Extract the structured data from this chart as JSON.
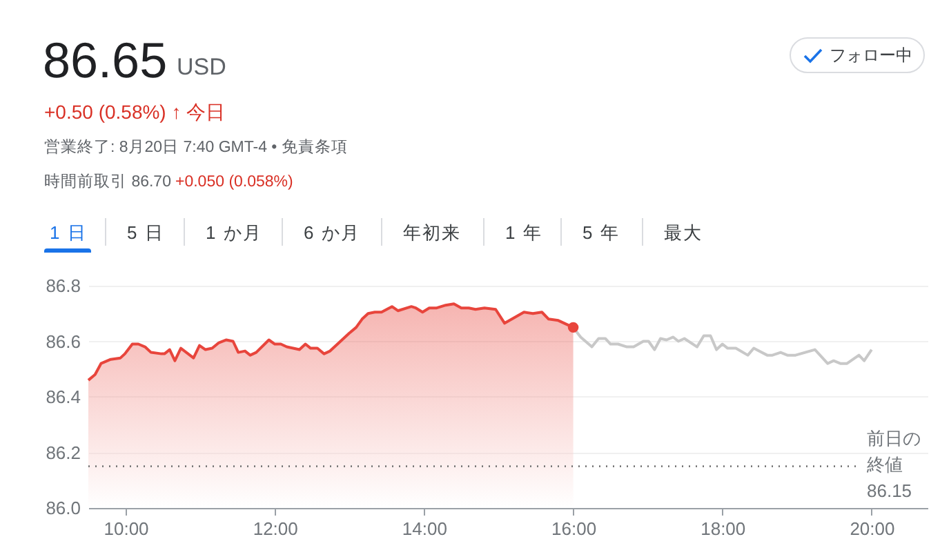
{
  "chart_data": {
    "type": "area",
    "title": "86.65",
    "annotations": [
      "USD",
      "+0.50 (0.58%) ↑ 今日",
      "営業終了: 8月20日 7:40 GMT-4 • 免責条項",
      "時間前取引 86.70",
      "+0.050 (0.058%)",
      "1 日",
      "5 日",
      "1 か月",
      "6 か月",
      "年初来",
      "1 年",
      "5 年",
      "最大",
      "フォロー中"
    ],
    "series": [
      {
        "color": "#e8453c",
        "x": [
          9.5,
          9.59,
          9.67,
          9.8,
          9.93,
          9.99,
          10.09,
          10.17,
          10.26,
          10.34,
          10.48,
          10.52,
          10.59,
          10.66,
          10.74,
          10.91,
          10.99,
          11.07,
          11.16,
          11.25,
          11.35,
          11.44,
          11.51,
          11.6,
          11.67,
          11.75,
          11.92,
          12.0,
          12.08,
          12.16,
          12.33,
          12.41,
          12.48,
          12.57,
          12.66,
          12.74,
          12.88,
          13.0,
          13.09,
          13.17,
          13.25,
          13.34,
          13.43,
          13.57,
          13.65,
          13.83,
          13.89,
          13.98,
          14.07,
          14.17,
          14.29,
          14.4,
          14.5,
          14.6,
          14.69,
          14.81,
          14.96,
          15.08,
          15.21,
          15.34,
          15.46,
          15.58,
          15.67,
          15.8,
          16.0
        ],
        "values": [
          86.46,
          86.48,
          86.52,
          86.535,
          86.54,
          86.555,
          86.59,
          86.59,
          86.58,
          86.56,
          86.555,
          86.555,
          86.57,
          86.53,
          86.575,
          86.54,
          86.585,
          86.57,
          86.575,
          86.595,
          86.605,
          86.6,
          86.56,
          86.565,
          86.55,
          86.56,
          86.605,
          86.59,
          86.59,
          86.58,
          86.57,
          86.59,
          86.575,
          86.575,
          86.555,
          86.565,
          86.6,
          86.63,
          86.65,
          86.68,
          86.7,
          86.705,
          86.705,
          86.725,
          86.71,
          86.725,
          86.72,
          86.705,
          86.72,
          86.72,
          86.73,
          86.735,
          86.72,
          86.72,
          86.715,
          86.72,
          86.715,
          86.665,
          86.685,
          86.705,
          86.7,
          86.705,
          86.68,
          86.675,
          86.65
        ]
      },
      {
        "type": "line",
        "color": "#c8c8c8",
        "x": [
          16.0,
          16.1,
          16.25,
          16.34,
          16.43,
          16.5,
          16.6,
          16.72,
          16.81,
          16.94,
          17.01,
          17.09,
          17.17,
          17.25,
          17.34,
          17.41,
          17.49,
          17.66,
          17.75,
          17.84,
          17.92,
          18.0,
          18.07,
          18.18,
          18.34,
          18.42,
          18.6,
          18.67,
          18.78,
          18.87,
          18.98,
          19.24,
          19.41,
          19.49,
          19.58,
          19.67,
          19.83,
          19.9,
          20.0
        ],
        "values": [
          86.65,
          86.615,
          86.58,
          86.61,
          86.61,
          86.59,
          86.59,
          86.58,
          86.58,
          86.6,
          86.6,
          86.57,
          86.61,
          86.605,
          86.615,
          86.6,
          86.61,
          86.58,
          86.62,
          86.62,
          86.57,
          86.59,
          86.575,
          86.575,
          86.55,
          86.575,
          86.55,
          86.55,
          86.56,
          86.55,
          86.55,
          86.57,
          86.52,
          86.53,
          86.52,
          86.52,
          86.55,
          86.53,
          86.57
        ]
      },
      {
        "type": "scatter",
        "color": "#e8453c",
        "x": [
          16.0
        ],
        "values": [
          86.65
        ]
      }
    ],
    "xlim": [
      9.5,
      20.75
    ],
    "xticks": [
      {
        "value": 10,
        "label": "10:00"
      },
      {
        "value": 12,
        "label": "12:00"
      },
      {
        "value": 14,
        "label": "14:00"
      },
      {
        "value": 16,
        "label": "16:00"
      },
      {
        "value": 18,
        "label": "18:00"
      },
      {
        "value": 20,
        "label": "20:00"
      }
    ],
    "ylim": [
      86.0,
      86.8
    ],
    "yticks": [
      {
        "value": 86,
        "label": "86.0"
      },
      86.2,
      86.4,
      86.6,
      86.8
    ],
    "grid": "y",
    "line_style": "solid",
    "ref_lines": [
      {
        "axis": "y",
        "value": 86.15,
        "label": "前日の終値86.15",
        "color": "#777777",
        "line_style": "dotted"
      }
    ]
  }
}
